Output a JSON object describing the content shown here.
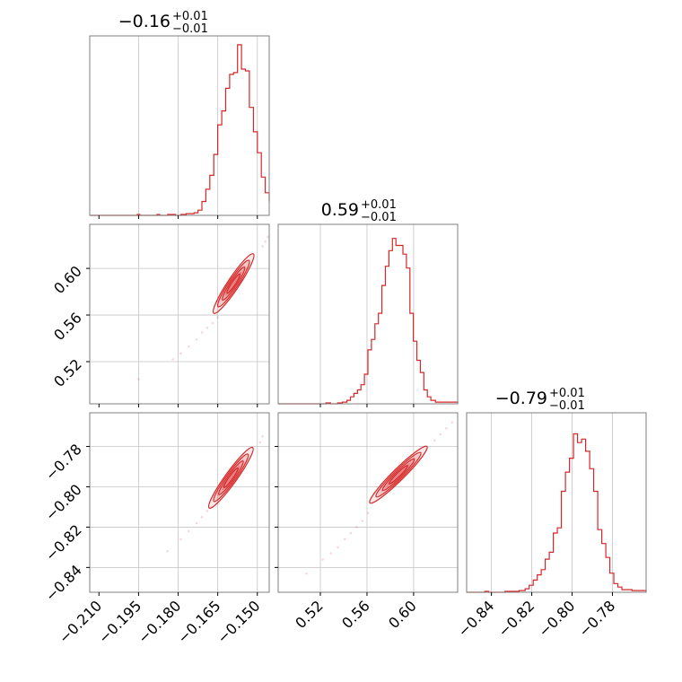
{
  "chart_data": {
    "type": "scatter",
    "kind": "corner-plot",
    "color": "#d62728",
    "parameters": [
      {
        "title_value": "−0.16",
        "err_plus": "+0.01",
        "err_minus": "−0.01",
        "range": [
          -0.2135,
          -0.1455
        ],
        "ticks": [
          -0.21,
          -0.195,
          -0.18,
          -0.165,
          -0.15
        ],
        "tick_labels": [
          "−0.210",
          "−0.195",
          "−0.180",
          "−0.165",
          "−0.150"
        ],
        "grid": [
          -0.195,
          -0.18,
          -0.165,
          -0.15
        ],
        "hist": [
          {
            "edge": -0.2135,
            "h": 0.0
          },
          {
            "edge": -0.1955,
            "h": 0.005
          },
          {
            "edge": -0.1945,
            "h": 0.0
          },
          {
            "edge": -0.188,
            "h": 0.005
          },
          {
            "edge": -0.187,
            "h": 0.0
          },
          {
            "edge": -0.184,
            "h": 0.005
          },
          {
            "edge": -0.181,
            "h": 0.0
          },
          {
            "edge": -0.179,
            "h": 0.005
          },
          {
            "edge": -0.177,
            "h": 0.01
          },
          {
            "edge": -0.174,
            "h": 0.015
          },
          {
            "edge": -0.1725,
            "h": 0.03
          },
          {
            "edge": -0.171,
            "h": 0.08
          },
          {
            "edge": -0.1695,
            "h": 0.15
          },
          {
            "edge": -0.168,
            "h": 0.23
          },
          {
            "edge": -0.1665,
            "h": 0.35
          },
          {
            "edge": -0.165,
            "h": 0.52
          },
          {
            "edge": -0.1635,
            "h": 0.6
          },
          {
            "edge": -0.162,
            "h": 0.73
          },
          {
            "edge": -0.1605,
            "h": 0.81
          },
          {
            "edge": -0.159,
            "h": 0.82
          },
          {
            "edge": -0.1575,
            "h": 0.98
          },
          {
            "edge": -0.156,
            "h": 0.84
          },
          {
            "edge": -0.1545,
            "h": 0.83
          },
          {
            "edge": -0.153,
            "h": 0.62
          },
          {
            "edge": -0.1515,
            "h": 0.48
          },
          {
            "edge": -0.15,
            "h": 0.36
          },
          {
            "edge": -0.1485,
            "h": 0.22
          },
          {
            "edge": -0.147,
            "h": 0.13
          },
          {
            "edge": -0.1455,
            "h": 0.08
          }
        ]
      },
      {
        "title_value": "0.59",
        "err_plus": "+0.01",
        "err_minus": "−0.01",
        "range": [
          0.4838,
          0.6378
        ],
        "ticks": [
          0.52,
          0.56,
          0.6
        ],
        "tick_labels": [
          "0.52",
          "0.56",
          "0.60"
        ],
        "grid": [
          0.52,
          0.56,
          0.6
        ],
        "hist": [
          {
            "edge": 0.4838,
            "h": 0.0
          },
          {
            "edge": 0.5248,
            "h": 0.005
          },
          {
            "edge": 0.5288,
            "h": 0.0
          },
          {
            "edge": 0.5348,
            "h": 0.005
          },
          {
            "edge": 0.5388,
            "h": 0.01
          },
          {
            "edge": 0.5428,
            "h": 0.02
          },
          {
            "edge": 0.5458,
            "h": 0.04
          },
          {
            "edge": 0.5488,
            "h": 0.06
          },
          {
            "edge": 0.5518,
            "h": 0.08
          },
          {
            "edge": 0.5548,
            "h": 0.11
          },
          {
            "edge": 0.5578,
            "h": 0.17
          },
          {
            "edge": 0.5608,
            "h": 0.31
          },
          {
            "edge": 0.5638,
            "h": 0.37
          },
          {
            "edge": 0.5668,
            "h": 0.46
          },
          {
            "edge": 0.5698,
            "h": 0.52
          },
          {
            "edge": 0.5728,
            "h": 0.68
          },
          {
            "edge": 0.5758,
            "h": 0.79
          },
          {
            "edge": 0.5788,
            "h": 0.88
          },
          {
            "edge": 0.5818,
            "h": 0.95
          },
          {
            "edge": 0.5848,
            "h": 0.91
          },
          {
            "edge": 0.5878,
            "h": 0.91
          },
          {
            "edge": 0.5908,
            "h": 0.86
          },
          {
            "edge": 0.5938,
            "h": 0.78
          },
          {
            "edge": 0.5968,
            "h": 0.52
          },
          {
            "edge": 0.5998,
            "h": 0.36
          },
          {
            "edge": 0.6028,
            "h": 0.25
          },
          {
            "edge": 0.6058,
            "h": 0.18
          },
          {
            "edge": 0.6088,
            "h": 0.08
          },
          {
            "edge": 0.6118,
            "h": 0.04
          },
          {
            "edge": 0.6148,
            "h": 0.02
          },
          {
            "edge": 0.6188,
            "h": 0.01
          },
          {
            "edge": 0.6378,
            "h": 0.0
          }
        ]
      },
      {
        "title_value": "−0.79",
        "err_plus": "+0.01",
        "err_minus": "−0.01",
        "range": [
          -0.8523,
          -0.7633
        ],
        "ticks": [
          -0.84,
          -0.82,
          -0.8,
          -0.78
        ],
        "tick_labels": [
          "−0.84",
          "−0.82",
          "−0.80",
          "−0.78"
        ],
        "grid": [
          -0.84,
          -0.82,
          -0.8,
          -0.78
        ],
        "hist": [
          {
            "edge": -0.8523,
            "h": 0.0
          },
          {
            "edge": -0.8433,
            "h": 0.005
          },
          {
            "edge": -0.8413,
            "h": 0.0
          },
          {
            "edge": -0.8333,
            "h": 0.005
          },
          {
            "edge": -0.8263,
            "h": 0.01
          },
          {
            "edge": -0.8233,
            "h": 0.02
          },
          {
            "edge": -0.8213,
            "h": 0.04
          },
          {
            "edge": -0.8193,
            "h": 0.07
          },
          {
            "edge": -0.8173,
            "h": 0.1
          },
          {
            "edge": -0.8153,
            "h": 0.13
          },
          {
            "edge": -0.8133,
            "h": 0.19
          },
          {
            "edge": -0.8113,
            "h": 0.23
          },
          {
            "edge": -0.8093,
            "h": 0.34
          },
          {
            "edge": -0.8073,
            "h": 0.37
          },
          {
            "edge": -0.8053,
            "h": 0.58
          },
          {
            "edge": -0.8033,
            "h": 0.69
          },
          {
            "edge": -0.8013,
            "h": 0.77
          },
          {
            "edge": -0.7993,
            "h": 0.91
          },
          {
            "edge": -0.7973,
            "h": 0.86
          },
          {
            "edge": -0.7953,
            "h": 0.88
          },
          {
            "edge": -0.7933,
            "h": 0.81
          },
          {
            "edge": -0.7913,
            "h": 0.71
          },
          {
            "edge": -0.7893,
            "h": 0.58
          },
          {
            "edge": -0.7873,
            "h": 0.36
          },
          {
            "edge": -0.7853,
            "h": 0.28
          },
          {
            "edge": -0.7833,
            "h": 0.2
          },
          {
            "edge": -0.7813,
            "h": 0.11
          },
          {
            "edge": -0.7793,
            "h": 0.05
          },
          {
            "edge": -0.7773,
            "h": 0.03
          },
          {
            "edge": -0.7753,
            "h": 0.015
          },
          {
            "edge": -0.7703,
            "h": 0.01
          },
          {
            "edge": -0.7633,
            "h": 0.0
          }
        ]
      }
    ],
    "pairs": [
      {
        "row": 1,
        "col": 0,
        "x_range": [
          -0.2135,
          -0.1455
        ],
        "y_range": [
          0.4838,
          0.6378
        ],
        "y_ticks": [
          0.52,
          0.56,
          0.6
        ],
        "y_tick_labels": [
          "0.52",
          "0.56",
          "0.60"
        ],
        "center": [
          -0.159,
          0.587
        ],
        "contour_ends": [
          [
            -0.1655,
            0.565
          ],
          [
            -0.1505,
            0.616
          ]
        ],
        "scatter": [
          [
            -0.195,
            0.505
          ],
          [
            -0.182,
            0.522
          ],
          [
            -0.179,
            0.527
          ],
          [
            -0.176,
            0.533
          ],
          [
            -0.173,
            0.539
          ],
          [
            -0.171,
            0.545
          ],
          [
            -0.169,
            0.549
          ],
          [
            -0.167,
            0.553
          ],
          [
            -0.165,
            0.558
          ],
          [
            -0.148,
            0.619
          ],
          [
            -0.147,
            0.623
          ],
          [
            -0.146,
            0.627
          ]
        ]
      },
      {
        "row": 2,
        "col": 0,
        "x_range": [
          -0.2135,
          -0.1455
        ],
        "y_range": [
          -0.8523,
          -0.7633
        ],
        "y_ticks": [
          -0.84,
          -0.82,
          -0.8,
          -0.78
        ],
        "y_tick_labels": [
          "−0.84",
          "−0.82",
          "−0.80",
          "−0.78"
        ],
        "center": [
          -0.16,
          -0.7955
        ],
        "contour_ends": [
          [
            -0.167,
            -0.8075
          ],
          [
            -0.1505,
            -0.7775
          ]
        ],
        "scatter": [
          [
            -0.184,
            -0.832
          ],
          [
            -0.179,
            -0.826
          ],
          [
            -0.176,
            -0.822
          ],
          [
            -0.173,
            -0.818
          ],
          [
            -0.171,
            -0.815
          ],
          [
            -0.169,
            -0.812
          ],
          [
            -0.167,
            -0.81
          ],
          [
            -0.149,
            -0.778
          ],
          [
            -0.148,
            -0.775
          ]
        ]
      },
      {
        "row": 2,
        "col": 1,
        "x_range": [
          0.4838,
          0.6378
        ],
        "y_range": [
          -0.8523,
          -0.7633
        ],
        "y_ticks": [
          -0.84,
          -0.82,
          -0.8,
          -0.78
        ],
        "y_tick_labels": [],
        "center": [
          0.587,
          -0.794
        ],
        "contour_ends": [
          [
            0.565,
            -0.807
          ],
          [
            0.614,
            -0.779
          ]
        ],
        "scatter": [
          [
            0.508,
            -0.843
          ],
          [
            0.522,
            -0.836
          ],
          [
            0.529,
            -0.833
          ],
          [
            0.535,
            -0.83
          ],
          [
            0.541,
            -0.826
          ],
          [
            0.546,
            -0.823
          ],
          [
            0.551,
            -0.82
          ],
          [
            0.556,
            -0.817
          ],
          [
            0.561,
            -0.813
          ],
          [
            0.618,
            -0.777
          ],
          [
            0.623,
            -0.774
          ],
          [
            0.628,
            -0.771
          ],
          [
            0.633,
            -0.768
          ]
        ]
      }
    ],
    "grid": true
  }
}
